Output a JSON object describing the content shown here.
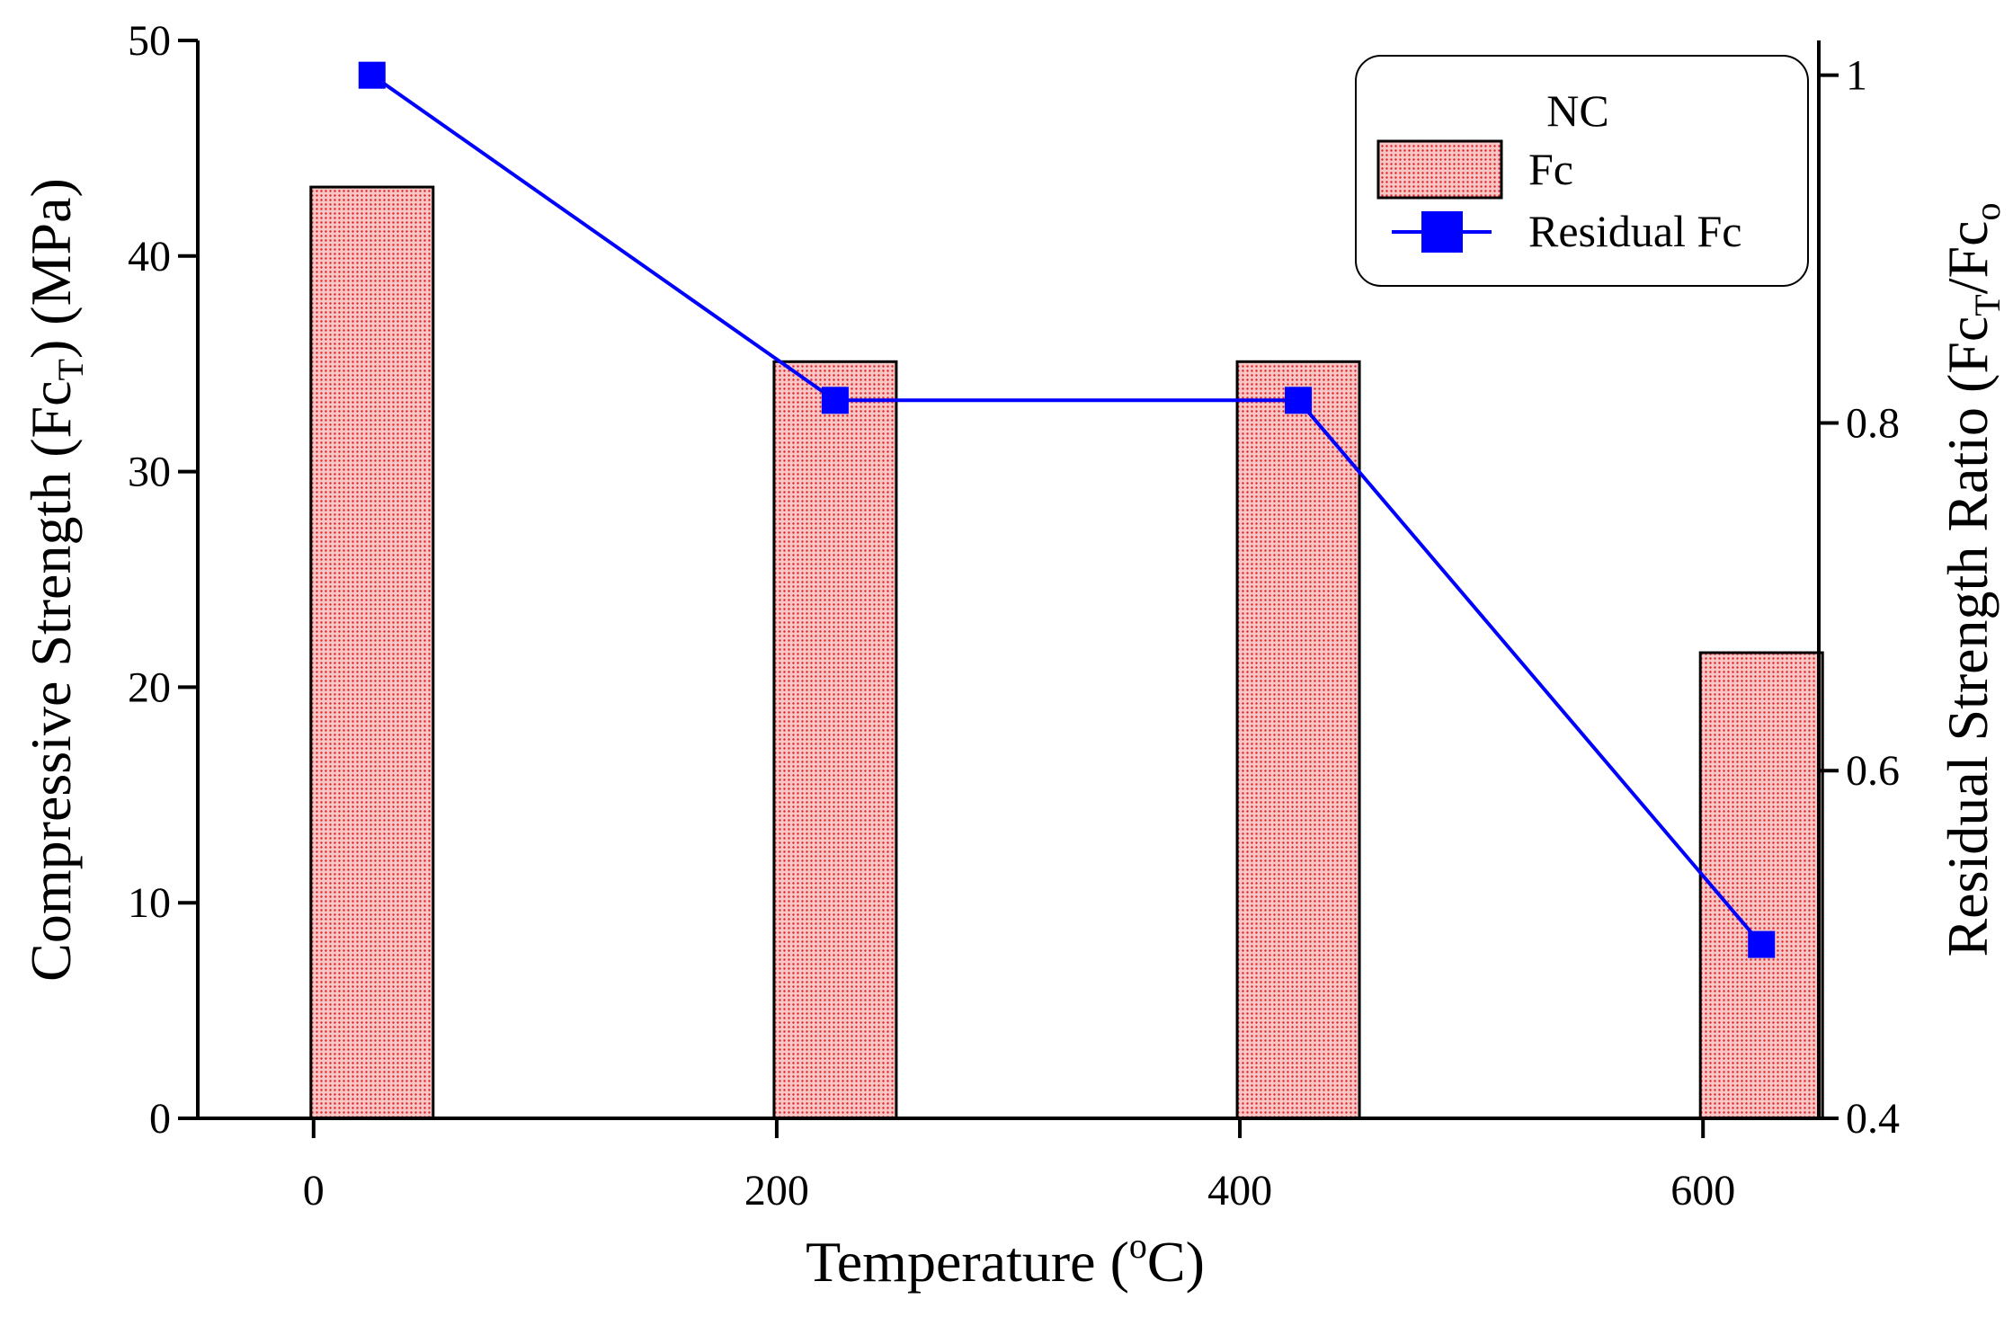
{
  "chart_data": {
    "type": "bar",
    "categories": [
      "0",
      "200",
      "400",
      "600"
    ],
    "x": [
      0,
      200,
      400,
      600
    ],
    "series": [
      {
        "name": "Fc",
        "type": "bar",
        "axis": "left",
        "values": [
          43.2,
          35.1,
          35.1,
          21.6
        ]
      },
      {
        "name": "Residual Fc",
        "type": "line",
        "axis": "right",
        "values": [
          1.0,
          0.813,
          0.813,
          0.5
        ]
      }
    ],
    "xlabel": {
      "main": "Temperature (",
      "sup": "o",
      "tail": "C)"
    },
    "ylabel_left": {
      "main": "Compressive Strength (Fc",
      "sub": "T",
      "tail": ") (MPa)"
    },
    "ylabel_right": {
      "main": "Residual Strength Ratio (Fc",
      "sub1": "T",
      "mid": "/Fc",
      "sub2": "o"
    },
    "xlim": [
      -50,
      650
    ],
    "ylim_left": [
      0,
      50
    ],
    "ylim_right": [
      0.4,
      1.02
    ],
    "x_ticks": [
      "0",
      "200",
      "400",
      "600"
    ],
    "y_left_ticks": [
      "0",
      "10",
      "20",
      "30",
      "40",
      "50"
    ],
    "y_right_ticks": [
      "0.4",
      "0.6",
      "0.8",
      "1"
    ],
    "legend": {
      "title": "NC",
      "items": [
        "Fc",
        "Residual Fc"
      ],
      "position": "top-right"
    },
    "colors": {
      "bar_fill": "#f0a8a8",
      "bar_dot": "#e02020",
      "bar_edge": "#000000",
      "line": "#0000ff",
      "marker": "#0000ff"
    }
  }
}
